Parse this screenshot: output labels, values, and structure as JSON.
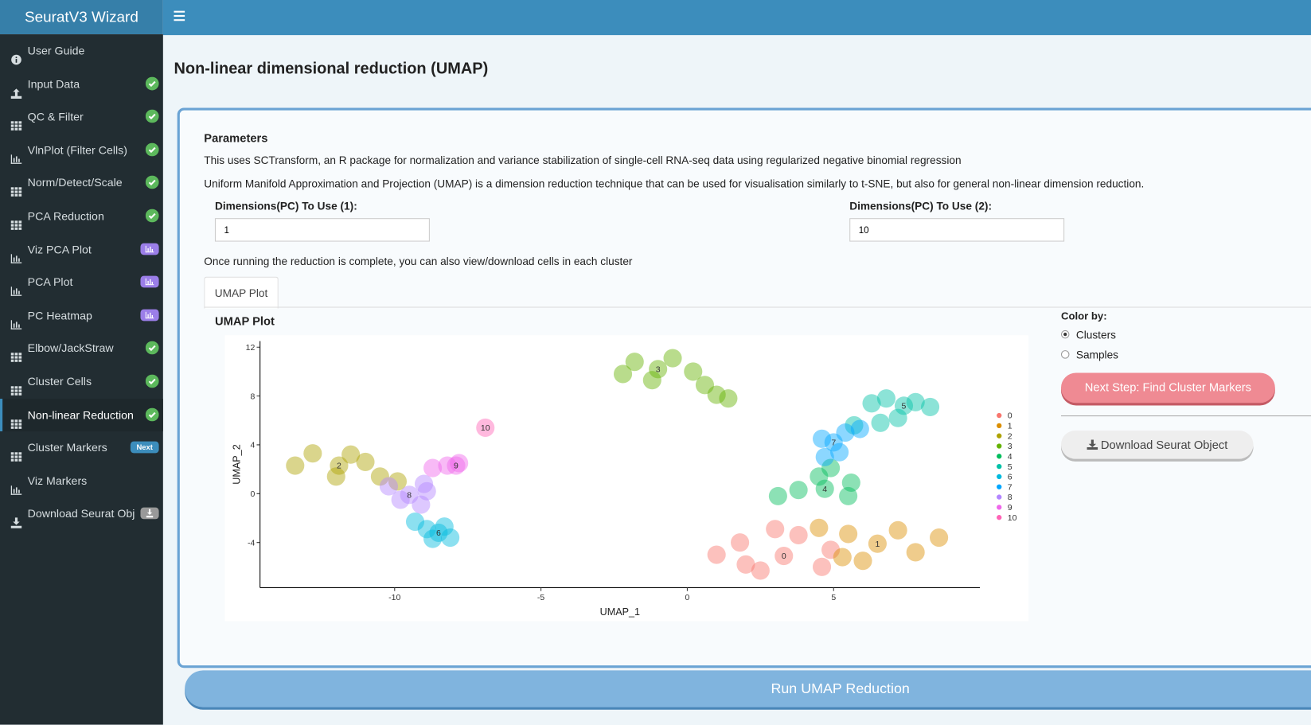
{
  "header": {
    "title": "SeuratV3 Wizard"
  },
  "sidebar": {
    "items": [
      "User Guide",
      "Input Data",
      "QC & Filter",
      "VlnPlot (Filter Cells)",
      "Norm/Detect/Scale",
      "PCA Reduction",
      "Viz PCA Plot",
      "PCA Plot",
      "PC Heatmap",
      "Elbow/JackStraw",
      "Cluster Cells",
      "Non-linear Reduction",
      "Cluster Markers",
      "Viz Markers",
      "Download Seurat Obj"
    ],
    "next_badge": "Next"
  },
  "page": {
    "title": "Non-linear dimensional reduction (UMAP)",
    "section": "Parameters",
    "description": [
      "This uses SCTransform, an R package for normalization and variance stabilization of single-cell RNA-seq data using regularized negative binomial regression",
      "Uniform Manifold Approximation and Projection (UMAP) is a dimension reduction technique that can be used for visualisation similarly to t-SNE, but also for general non-linear dimension reduction."
    ],
    "inputs": [
      {
        "label": "Dimensions(PC) To Use (1):",
        "value": 1
      },
      {
        "label": "Dimensions(PC) To Use (2):",
        "value": 10
      }
    ],
    "note": "Once running the reduction is complete, you can also view/download cells in each cluster",
    "tab": "UMAP Plot",
    "color_by": {
      "label": "Color by:",
      "options": [
        "Clusters",
        "Samples"
      ],
      "selected": 0
    },
    "buttons": {
      "next": "Next Step: Find Cluster Markers",
      "download": "Download Seurat Object",
      "run": "Run UMAP Reduction"
    }
  },
  "chart_data": {
    "type": "scatter",
    "title": "UMAP Plot",
    "xlabel": "UMAP_1",
    "ylabel": "UMAP_2",
    "xlim": [
      -14.6,
      10
    ],
    "ylim": [
      -7.7,
      12.5
    ],
    "xticks": [
      -10,
      -5,
      0,
      5
    ],
    "yticks": [
      -4,
      0,
      4,
      8,
      12
    ],
    "series": [
      {
        "name": "0",
        "color": "#F8766D",
        "x": [
          3.3,
          1.0,
          1.8,
          2.5,
          3.8,
          4.6,
          4.9,
          2.0,
          3.0
        ],
        "values": [
          -5.1,
          -5.0,
          -4.0,
          -6.3,
          -3.4,
          -6.0,
          -4.6,
          -5.8,
          -2.9
        ]
      },
      {
        "name": "1",
        "color": "#DB8E00",
        "x": [
          6.5,
          4.5,
          5.5,
          6.0,
          7.2,
          7.8,
          8.6,
          5.3
        ],
        "values": [
          -4.1,
          -2.8,
          -3.3,
          -5.5,
          -3.0,
          -4.8,
          -3.6,
          -5.2
        ]
      },
      {
        "name": "2",
        "color": "#AEA200",
        "x": [
          -11.9,
          -13.4,
          -12.8,
          -12.0,
          -11.0,
          -10.5,
          -9.9,
          -11.5
        ],
        "values": [
          2.3,
          2.3,
          3.3,
          1.4,
          2.6,
          1.4,
          1.0,
          3.2
        ]
      },
      {
        "name": "3",
        "color": "#64B200",
        "x": [
          -1.0,
          -2.2,
          -1.8,
          -0.5,
          0.2,
          -1.2,
          0.6,
          1.0,
          1.4
        ],
        "values": [
          10.2,
          9.8,
          10.8,
          11.1,
          10.0,
          9.3,
          8.9,
          8.1,
          7.8
        ]
      },
      {
        "name": "4",
        "color": "#00BD5C",
        "x": [
          4.7,
          3.1,
          3.8,
          4.5,
          5.6,
          5.5,
          4.9
        ],
        "values": [
          0.4,
          -0.2,
          0.3,
          1.4,
          0.9,
          -0.2,
          2.1
        ]
      },
      {
        "name": "5",
        "color": "#00C1A7",
        "x": [
          7.4,
          6.3,
          6.8,
          7.8,
          8.3,
          7.2,
          6.6,
          5.7
        ],
        "values": [
          7.2,
          7.4,
          7.8,
          7.5,
          7.1,
          6.2,
          5.8,
          5.6
        ]
      },
      {
        "name": "6",
        "color": "#00BADE",
        "x": [
          -8.5,
          -9.3,
          -8.9,
          -8.1,
          -8.3,
          -8.7
        ],
        "values": [
          -3.2,
          -2.3,
          -2.9,
          -3.6,
          -2.7,
          -3.7
        ]
      },
      {
        "name": "7",
        "color": "#00A6FF",
        "x": [
          5.0,
          4.7,
          5.4,
          5.9,
          4.6,
          5.2
        ],
        "values": [
          4.2,
          3.0,
          5.0,
          5.3,
          4.5,
          3.4
        ]
      },
      {
        "name": "8",
        "color": "#B385FF",
        "x": [
          -9.5,
          -10.2,
          -9.0,
          -9.1,
          -8.9,
          -9.8
        ],
        "values": [
          -0.1,
          0.6,
          0.8,
          -0.9,
          0.2,
          -0.5
        ]
      },
      {
        "name": "9",
        "color": "#EF67EB",
        "x": [
          -7.9,
          -8.7,
          -8.2,
          -7.8
        ],
        "values": [
          2.3,
          2.1,
          2.3,
          2.5
        ]
      },
      {
        "name": "10",
        "color": "#FF63B6",
        "x": [
          -6.9
        ],
        "values": [
          5.4
        ]
      }
    ]
  }
}
